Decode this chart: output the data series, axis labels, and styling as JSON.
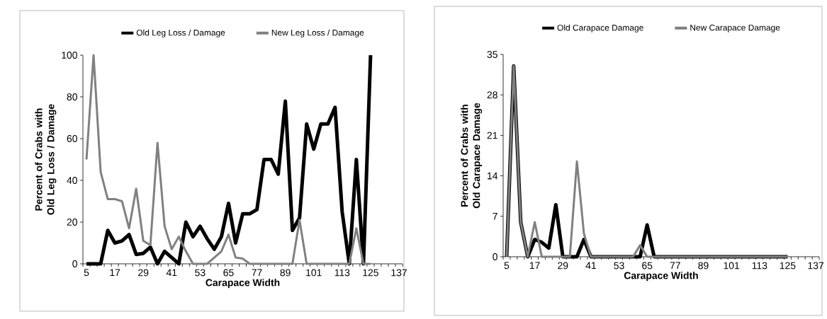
{
  "chart_data": [
    {
      "type": "line",
      "xlabel": "Carapace Width",
      "ylabel": "Percent of Crabs with Old Leg Loss / Damage",
      "legend": "top",
      "categories": [
        "5",
        null,
        null,
        null,
        "17",
        null,
        null,
        null,
        "29",
        null,
        null,
        null,
        "41",
        null,
        null,
        null,
        "53",
        null,
        null,
        null,
        "65",
        null,
        null,
        null,
        "77",
        null,
        null,
        null,
        "89",
        null,
        null,
        null,
        "101",
        null,
        null,
        null,
        "113",
        null,
        null,
        null,
        "125",
        null,
        null,
        null,
        "137"
      ],
      "ylim": [
        0,
        100
      ],
      "yticks": [
        0,
        20,
        40,
        60,
        80,
        100
      ],
      "series": [
        {
          "name": "Old Leg Loss / Damage",
          "color": "#000000",
          "values": [
            0,
            0,
            0,
            16,
            10,
            11,
            14,
            4.5,
            5,
            8,
            0,
            6,
            3,
            0,
            20,
            13,
            18,
            12,
            7,
            13,
            29,
            10,
            24,
            24,
            26,
            50,
            50,
            43,
            78,
            16,
            22,
            67,
            55,
            67,
            67,
            75,
            25,
            0,
            50,
            0,
            100,
            null,
            null,
            null,
            null
          ]
        },
        {
          "name": "New Leg Loss / Damage",
          "color": "#808080",
          "values": [
            50,
            100,
            44,
            31,
            31,
            30,
            17,
            36,
            11,
            9,
            58,
            18,
            7,
            13,
            6,
            0,
            0,
            0,
            3,
            6,
            14,
            3,
            2.5,
            0,
            0,
            0,
            0,
            0,
            0,
            0,
            21,
            0,
            0,
            0,
            0,
            0,
            0,
            0,
            17,
            0,
            0,
            null,
            null,
            null,
            null
          ]
        }
      ]
    },
    {
      "type": "line",
      "xlabel": "Carapace Width",
      "ylabel": "Percent of Crabs with Old Carapace Damage",
      "legend": "top",
      "categories": [
        "5",
        null,
        null,
        null,
        "17",
        null,
        null,
        null,
        "29",
        null,
        null,
        null,
        "41",
        null,
        null,
        null,
        "53",
        null,
        null,
        null,
        "65",
        null,
        null,
        null,
        "77",
        null,
        null,
        null,
        "89",
        null,
        null,
        null,
        "101",
        null,
        null,
        null,
        "113",
        null,
        null,
        null,
        "125",
        null,
        null,
        null,
        "137"
      ],
      "ylim": [
        0,
        35
      ],
      "yticks": [
        0,
        7,
        14,
        21,
        28,
        35
      ],
      "series": [
        {
          "name": "Old Carapace Damage",
          "color": "#000000",
          "values": [
            0,
            33,
            6,
            0,
            3,
            2.5,
            1.5,
            9,
            0,
            0,
            0,
            3,
            0,
            0,
            0,
            0,
            0,
            0,
            0,
            0,
            5.5,
            0,
            0,
            0,
            0,
            0,
            0,
            0,
            0,
            0,
            0,
            0,
            0,
            0,
            0,
            0,
            0,
            0,
            0,
            0,
            0,
            null,
            null,
            null,
            null
          ]
        },
        {
          "name": "New Carapace Damage",
          "color": "#808080",
          "values": [
            0,
            33,
            6,
            0,
            6,
            0,
            0,
            0,
            0,
            0,
            16.5,
            4,
            0,
            0,
            0,
            0,
            0,
            0,
            0,
            2,
            0,
            0,
            0,
            0,
            0,
            0,
            0,
            0,
            0,
            0,
            0,
            0,
            0,
            0,
            0,
            0,
            0,
            0,
            0,
            0,
            0,
            null,
            null,
            null,
            null
          ]
        }
      ]
    }
  ]
}
